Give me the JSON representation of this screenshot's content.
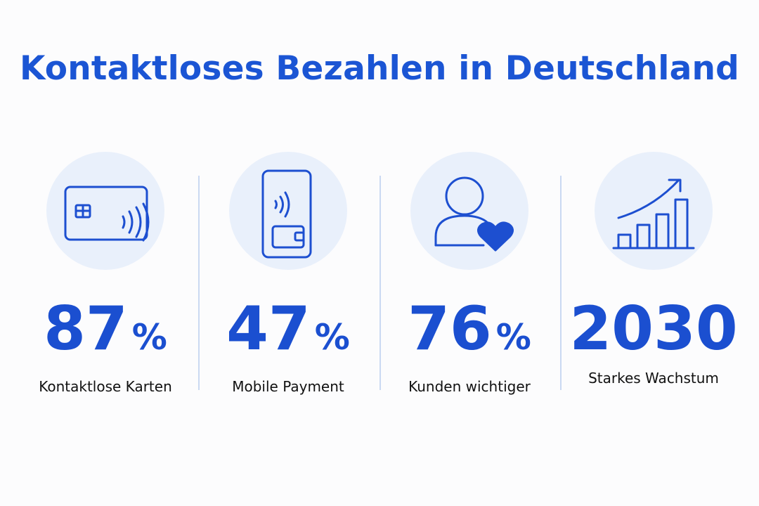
{
  "title": "Kontaktloses Bezahlen in Deutschland",
  "stats": [
    {
      "value": 87,
      "unit": "%",
      "label": "Kontaktlose Karten"
    },
    {
      "value": 47,
      "unit": "%",
      "label": "Mobile Payment"
    },
    {
      "value": 76,
      "unit": "%",
      "label": "Kunden wichtiger"
    },
    {
      "value": 2030,
      "label": "Starkes Wachstum"
    }
  ]
}
